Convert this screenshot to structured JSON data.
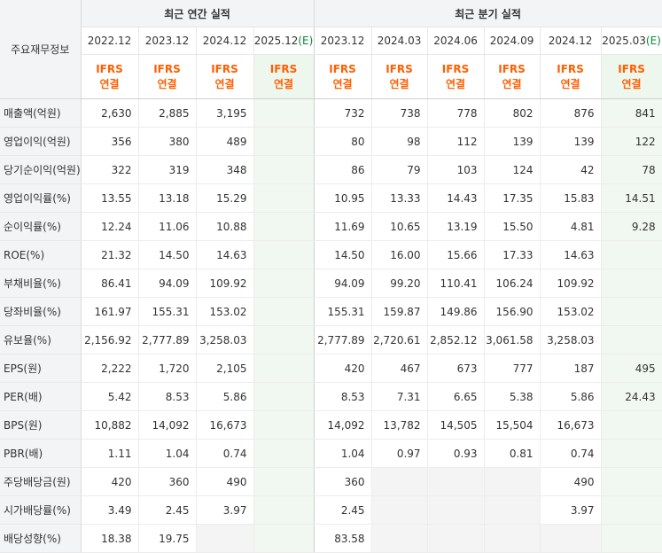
{
  "header": {
    "label": "주요재무정보",
    "annual_group": "최근 연간 실적",
    "quarterly_group": "최근 분기 실적",
    "ifrs_line1": "IFRS",
    "ifrs_line2": "연결"
  },
  "annual_periods": [
    {
      "label": "2022.12",
      "estimate": false
    },
    {
      "label": "2023.12",
      "estimate": false
    },
    {
      "label": "2024.12",
      "estimate": false
    },
    {
      "label": "2025.12",
      "estimate": true,
      "suffix": "(E)"
    }
  ],
  "quarterly_periods": [
    {
      "label": "2023.12",
      "estimate": false
    },
    {
      "label": "2024.03",
      "estimate": false
    },
    {
      "label": "2024.06",
      "estimate": false
    },
    {
      "label": "2024.09",
      "estimate": false
    },
    {
      "label": "2024.12",
      "estimate": false
    },
    {
      "label": "2025.03",
      "estimate": true,
      "suffix": "(E)"
    }
  ],
  "rows": [
    {
      "label": "매출액(억원)",
      "annual": [
        "2,630",
        "2,885",
        "3,195",
        ""
      ],
      "quarterly": [
        "732",
        "738",
        "778",
        "802",
        "876",
        "841"
      ],
      "group_start": true
    },
    {
      "label": "영업이익(억원)",
      "annual": [
        "356",
        "380",
        "489",
        ""
      ],
      "quarterly": [
        "80",
        "98",
        "112",
        "139",
        "139",
        "122"
      ]
    },
    {
      "label": "당기순이익(억원)",
      "annual": [
        "322",
        "319",
        "348",
        ""
      ],
      "quarterly": [
        "86",
        "79",
        "103",
        "124",
        "42",
        "78"
      ]
    },
    {
      "label": "영업이익률(%)",
      "annual": [
        "13.55",
        "13.18",
        "15.29",
        ""
      ],
      "quarterly": [
        "10.95",
        "13.33",
        "14.43",
        "17.35",
        "15.83",
        "14.51"
      ],
      "group_start": true
    },
    {
      "label": "순이익률(%)",
      "annual": [
        "12.24",
        "11.06",
        "10.88",
        ""
      ],
      "quarterly": [
        "11.69",
        "10.65",
        "13.19",
        "15.50",
        "4.81",
        "9.28"
      ]
    },
    {
      "label": "ROE(%)",
      "annual": [
        "21.32",
        "14.50",
        "14.63",
        ""
      ],
      "quarterly": [
        "14.50",
        "16.00",
        "15.66",
        "17.33",
        "14.63",
        ""
      ]
    },
    {
      "label": "부채비율(%)",
      "annual": [
        "86.41",
        "94.09",
        "109.92",
        ""
      ],
      "quarterly": [
        "94.09",
        "99.20",
        "110.41",
        "106.24",
        "109.92",
        ""
      ],
      "group_start": true
    },
    {
      "label": "당좌비율(%)",
      "annual": [
        "161.97",
        "155.31",
        "153.02",
        ""
      ],
      "quarterly": [
        "155.31",
        "159.87",
        "149.86",
        "156.90",
        "153.02",
        ""
      ]
    },
    {
      "label": "유보율(%)",
      "annual": [
        "2,156.92",
        "2,777.89",
        "3,258.03",
        ""
      ],
      "quarterly": [
        "2,777.89",
        "2,720.61",
        "2,852.12",
        "3,061.58",
        "3,258.03",
        ""
      ]
    },
    {
      "label": "EPS(원)",
      "annual": [
        "2,222",
        "1,720",
        "2,105",
        ""
      ],
      "quarterly": [
        "420",
        "467",
        "673",
        "777",
        "187",
        "495"
      ],
      "group_start": true
    },
    {
      "label": "PER(배)",
      "annual": [
        "5.42",
        "8.53",
        "5.86",
        ""
      ],
      "quarterly": [
        "8.53",
        "7.31",
        "6.65",
        "5.38",
        "5.86",
        "24.43"
      ]
    },
    {
      "label": "BPS(원)",
      "annual": [
        "10,882",
        "14,092",
        "16,673",
        ""
      ],
      "quarterly": [
        "14,092",
        "13,782",
        "14,505",
        "15,504",
        "16,673",
        ""
      ]
    },
    {
      "label": "PBR(배)",
      "annual": [
        "1.11",
        "1.04",
        "0.74",
        ""
      ],
      "quarterly": [
        "1.04",
        "0.97",
        "0.93",
        "0.81",
        "0.74",
        ""
      ]
    },
    {
      "label": "주당배당금(원)",
      "annual": [
        "420",
        "360",
        "490",
        ""
      ],
      "quarterly": [
        "360",
        null,
        null,
        null,
        "490",
        ""
      ],
      "group_start": true
    },
    {
      "label": "시가배당률(%)",
      "annual": [
        "3.49",
        "2.45",
        "3.97",
        ""
      ],
      "quarterly": [
        "2.45",
        null,
        null,
        null,
        "3.97",
        ""
      ]
    },
    {
      "label": "배당성향(%)",
      "annual": [
        "18.38",
        "19.75",
        null,
        ""
      ],
      "quarterly": [
        "83.58",
        null,
        null,
        null,
        null,
        ""
      ]
    }
  ]
}
